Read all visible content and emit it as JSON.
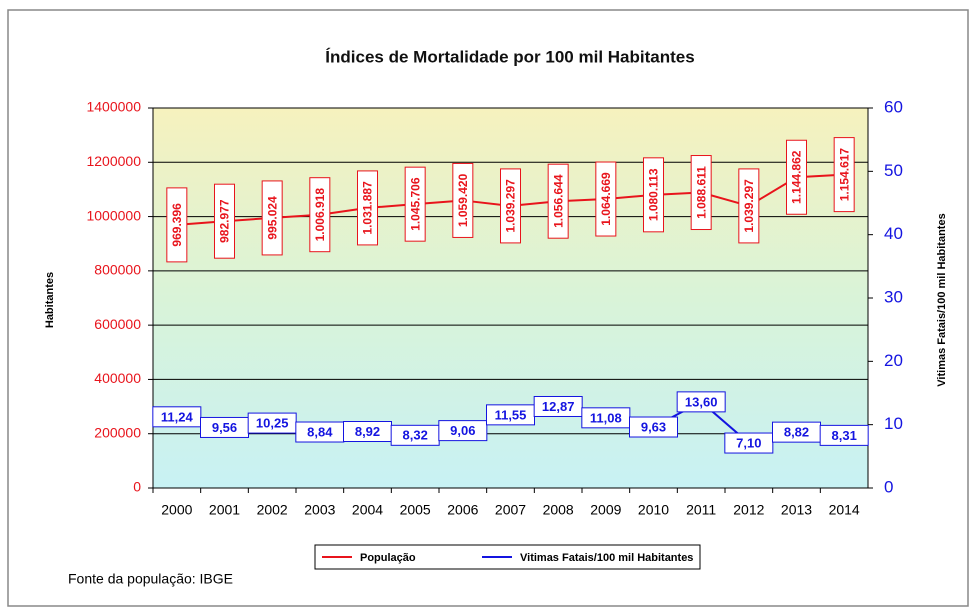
{
  "chart_data": {
    "type": "line",
    "title": "Índices de Mortalidade por 100 mil Habitantes",
    "ylabel": "Habitantes",
    "y2label": "Vitimas Fatais/100 mil Habitantes",
    "source": "Fonte da população: IBGE",
    "categories": [
      "2000",
      "2001",
      "2002",
      "2003",
      "2004",
      "2005",
      "2006",
      "2007",
      "2008",
      "2009",
      "2010",
      "2011",
      "2012",
      "2013",
      "2014"
    ],
    "series": [
      {
        "name": "População",
        "color": "#e8141c",
        "axis": "y",
        "values": [
          969396,
          982977,
          995024,
          1006918,
          1031887,
          1045706,
          1059420,
          1039297,
          1056644,
          1064669,
          1080113,
          1088611,
          1039297,
          1144862,
          1154617
        ],
        "value_labels": [
          "969.396",
          "982.977",
          "995.024",
          "1.006.918",
          "1.031.887",
          "1.045.706",
          "1.059.420",
          "1.039.297",
          "1.056.644",
          "1.064.669",
          "1.080.113",
          "1.088.611",
          "1.039.297",
          "1.144.862",
          "1.154.617"
        ]
      },
      {
        "name": "Vitimas Fatais/100 mil Habitantes",
        "color": "#1414e0",
        "axis": "y2",
        "values": [
          11.24,
          9.56,
          10.25,
          8.84,
          8.92,
          8.32,
          9.06,
          11.55,
          12.87,
          11.08,
          9.63,
          13.6,
          7.1,
          8.82,
          8.31
        ],
        "value_labels": [
          "11,24",
          "9,56",
          "10,25",
          "8,84",
          "8,92",
          "8,32",
          "9,06",
          "11,55",
          "12,87",
          "11,08",
          "9,63",
          "13,60",
          "7,10",
          "8,82",
          "8,31"
        ]
      }
    ],
    "ylim": [
      0,
      1400000
    ],
    "yticks": [
      0,
      200000,
      400000,
      600000,
      800000,
      1000000,
      1200000,
      1400000
    ],
    "y2lim": [
      0,
      60
    ],
    "y2ticks": [
      0,
      10,
      20,
      30,
      40,
      50,
      60
    ],
    "grid": true,
    "legend": "bottom"
  }
}
